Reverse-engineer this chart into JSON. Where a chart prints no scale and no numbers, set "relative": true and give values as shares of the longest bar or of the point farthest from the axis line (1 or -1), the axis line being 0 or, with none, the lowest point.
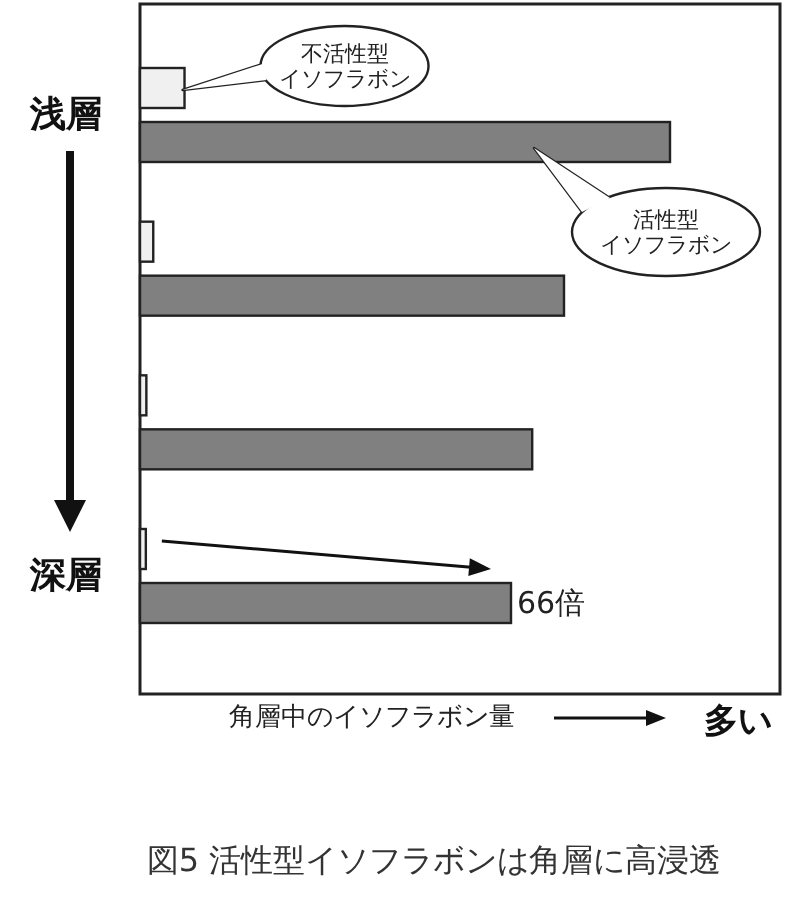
{
  "chart_data": {
    "type": "bar",
    "orientation": "horizontal",
    "relative": true,
    "categories": [
      "浅層",
      null,
      null,
      "深層"
    ],
    "series": [
      {
        "name": "不活性型イソフラボン",
        "color": "#f0f0f0",
        "values": [
          0.084,
          0.025,
          0.012,
          0.011
        ]
      },
      {
        "name": "活性型イソフラボン",
        "color": "#808080",
        "values": [
          1,
          0.8,
          0.74,
          0.7
        ]
      }
    ],
    "title": "図5 活性型イソフラボンは角層に高浸透",
    "xlabel": "角層中のイソフラボン量",
    "annotations": [
      {
        "text": "66倍",
        "x": 0.7,
        "y": "深層"
      },
      "多い"
    ]
  }
}
